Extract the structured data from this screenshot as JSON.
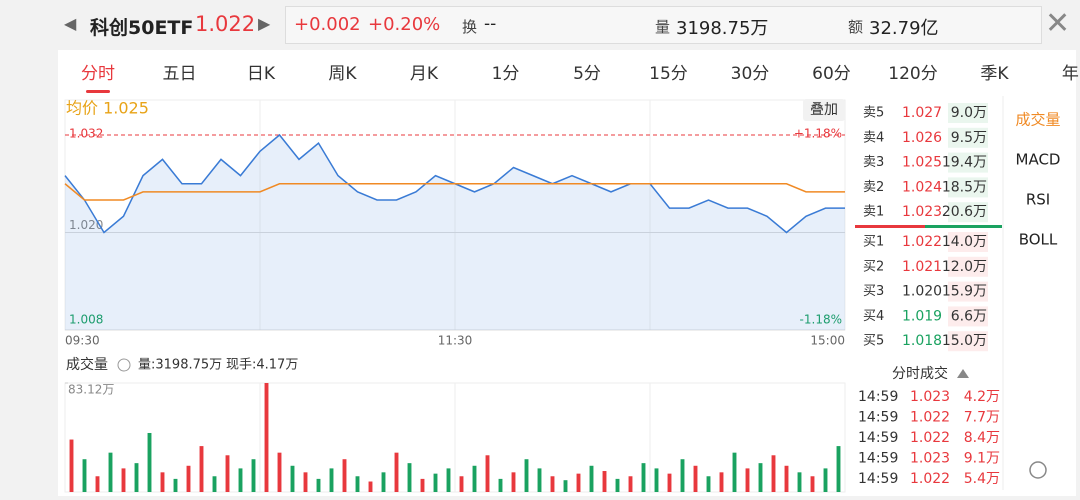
{
  "header": {
    "name": "科创50ETF",
    "price": "1.022",
    "change": "+0.002",
    "change_pct": "+0.20%",
    "turnover_label": "换",
    "turnover": "--",
    "volume_label": "量",
    "volume": "3198.75万",
    "amount_label": "额",
    "amount": "32.79亿"
  },
  "tabs": {
    "items": [
      "分时",
      "五日",
      "日K",
      "周K",
      "月K",
      "1分",
      "5分",
      "15分",
      "30分",
      "60分",
      "120分",
      "季K",
      "年K"
    ],
    "active": 0
  },
  "chart_data": [
    {
      "type": "line",
      "legend": "均价 1.025",
      "overlay_button": "叠加",
      "pct_top": "+1.18%",
      "pct_bottom": "-1.18%",
      "x": [
        0,
        6,
        12,
        18,
        24,
        30,
        36,
        42,
        48,
        54,
        60,
        66,
        72,
        78,
        84,
        90,
        96,
        102,
        108,
        114,
        120,
        126,
        132,
        138,
        144,
        150,
        156,
        162,
        168,
        174,
        180,
        186,
        192,
        198,
        204,
        210,
        216,
        222,
        228,
        234,
        240
      ],
      "xlim": [
        0,
        240
      ],
      "xticks": [
        {
          "value": 0,
          "label": "09:30"
        },
        {
          "value": 120,
          "label": "11:30"
        },
        {
          "value": 240,
          "label": "15:00"
        }
      ],
      "ylim": [
        1.008,
        1.032
      ],
      "yticks": [
        1.032,
        {
          "value": 1.02,
          "label": "1.020"
        },
        1.008
      ],
      "series": [
        {
          "color": "#3a7bd5",
          "values": [
            1.027,
            1.024,
            1.02,
            1.022,
            1.027,
            1.029,
            1.026,
            1.026,
            1.029,
            1.027,
            1.03,
            1.032,
            1.029,
            1.031,
            1.027,
            1.025,
            1.024,
            1.024,
            1.025,
            1.027,
            1.026,
            1.025,
            1.026,
            1.028,
            1.027,
            1.026,
            1.027,
            1.026,
            1.025,
            1.026,
            1.026,
            1.023,
            1.023,
            1.024,
            1.023,
            1.023,
            1.022,
            1.02,
            1.022,
            1.023,
            1.023
          ]
        },
        {
          "color": "#f08a24",
          "values": [
            1.026,
            1.024,
            1.024,
            1.024,
            1.025,
            1.025,
            1.025,
            1.025,
            1.025,
            1.025,
            1.025,
            1.026,
            1.026,
            1.026,
            1.026,
            1.026,
            1.026,
            1.026,
            1.026,
            1.026,
            1.026,
            1.026,
            1.026,
            1.026,
            1.026,
            1.026,
            1.026,
            1.026,
            1.026,
            1.026,
            1.026,
            1.026,
            1.026,
            1.026,
            1.026,
            1.026,
            1.026,
            1.026,
            1.025,
            1.025,
            1.025
          ]
        }
      ]
    },
    {
      "type": "bar",
      "title": "成交量",
      "volume_text": "量:3198.75万",
      "hand_text": "现手:4.17万",
      "ylim": [
        0,
        83.12
      ],
      "yticks": [
        {
          "value": 83.12,
          "label": "83.12万"
        }
      ],
      "values": [
        40,
        25,
        12,
        30,
        18,
        22,
        45,
        15,
        10,
        20,
        35,
        12,
        28,
        18,
        25,
        83.12,
        30,
        20,
        15,
        10,
        18,
        25,
        12,
        8,
        15,
        30,
        22,
        10,
        14,
        18,
        12,
        20,
        28,
        10,
        15,
        25,
        18,
        12,
        9,
        14,
        20,
        16,
        10,
        12,
        22,
        18,
        14,
        25,
        20,
        12,
        15,
        30,
        18,
        22,
        28,
        20,
        15,
        12,
        18,
        35
      ],
      "colors": [
        "#e8383d",
        "#1aa260",
        "#e8383d",
        "#1aa260",
        "#e8383d",
        "#1aa260",
        "#1aa260",
        "#e8383d",
        "#1aa260",
        "#e8383d",
        "#e8383d",
        "#1aa260",
        "#e8383d",
        "#1aa260",
        "#1aa260",
        "#e8383d",
        "#e8383d",
        "#1aa260",
        "#e8383d",
        "#1aa260",
        "#1aa260",
        "#e8383d",
        "#1aa260",
        "#e8383d",
        "#1aa260",
        "#e8383d",
        "#1aa260",
        "#e8383d",
        "#1aa260",
        "#1aa260",
        "#e8383d",
        "#1aa260",
        "#e8383d",
        "#1aa260",
        "#e8383d",
        "#1aa260",
        "#1aa260",
        "#e8383d",
        "#1aa260",
        "#e8383d",
        "#1aa260",
        "#e8383d",
        "#1aa260",
        "#e8383d",
        "#1aa260",
        "#1aa260",
        "#e8383d",
        "#1aa260",
        "#e8383d",
        "#1aa260",
        "#e8383d",
        "#1aa260",
        "#e8383d",
        "#1aa260",
        "#e8383d",
        "#e8383d",
        "#1aa260",
        "#e8383d",
        "#1aa260",
        "#1aa260"
      ]
    }
  ],
  "order_book": {
    "asks": [
      [
        "卖5",
        "1.027",
        "9.0万"
      ],
      [
        "卖4",
        "1.026",
        "9.5万"
      ],
      [
        "卖3",
        "1.025",
        "19.4万"
      ],
      [
        "卖2",
        "1.024",
        "18.5万"
      ],
      [
        "卖1",
        "1.023",
        "20.6万"
      ]
    ],
    "bids": [
      [
        "买1",
        "1.022",
        "14.0万"
      ],
      [
        "买2",
        "1.021",
        "12.0万"
      ],
      [
        "买3",
        "1.020",
        "15.9万"
      ],
      [
        "买4",
        "1.019",
        "6.6万"
      ],
      [
        "买5",
        "1.018",
        "15.0万"
      ]
    ]
  },
  "trades": {
    "title": "分时成交",
    "rows": [
      [
        "14:59",
        "1.023",
        "4.2万"
      ],
      [
        "14:59",
        "1.022",
        "7.7万"
      ],
      [
        "14:59",
        "1.022",
        "8.4万"
      ],
      [
        "14:59",
        "1.023",
        "9.1万"
      ],
      [
        "14:59",
        "1.022",
        "5.4万"
      ]
    ]
  },
  "side_tabs": [
    "成交量",
    "MACD",
    "RSI",
    "BOLL"
  ]
}
